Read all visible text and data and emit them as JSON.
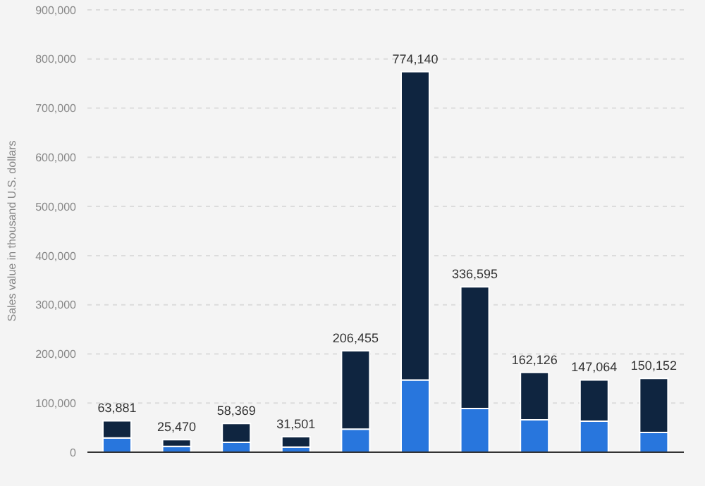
{
  "chart_data": {
    "type": "bar",
    "ylabel": "Sales value in thousand U.S. dollars",
    "categories": [
      null,
      null,
      null,
      null,
      null,
      null,
      null,
      null,
      null,
      null
    ],
    "stacked": true,
    "series": [
      {
        "color": "#2876dd",
        "values": [
          29000,
          12000,
          20000,
          10500,
          47000,
          147000,
          89000,
          66000,
          63000,
          40000
        ]
      },
      {
        "color": "#0f2540",
        "values": [
          34881,
          13470,
          38369,
          21001,
          159455,
          627140,
          247595,
          96126,
          84064,
          110152
        ]
      }
    ],
    "totals": [
      "63,881",
      "25,470",
      "58,369",
      "31,501",
      "206,455",
      "774,140",
      "336,595",
      "162,126",
      "147,064",
      "150,152"
    ],
    "ylim": [
      0,
      900000
    ],
    "yticks": [
      {
        "value": 0,
        "label": "0"
      },
      {
        "value": 100000,
        "label": "100,000"
      },
      {
        "value": 200000,
        "label": "200,000"
      },
      {
        "value": 300000,
        "label": "300,000"
      },
      {
        "value": 400000,
        "label": "400,000"
      },
      {
        "value": 500000,
        "label": "500,000"
      },
      {
        "value": 600000,
        "label": "600,000"
      },
      {
        "value": 700000,
        "label": "700,000"
      },
      {
        "value": 800000,
        "label": "800,000"
      },
      {
        "value": 900000,
        "label": "900,000"
      }
    ],
    "grid": "y"
  }
}
